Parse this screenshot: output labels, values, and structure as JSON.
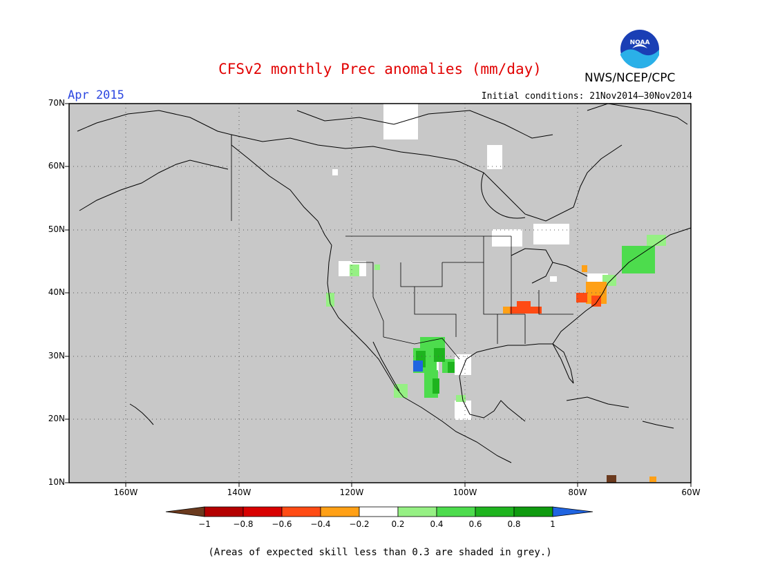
{
  "title": "CFSv2 monthly Prec anomalies (mm/day)",
  "valid_month": "Apr 2015",
  "initial_conditions": "Initial conditions: 21Nov2014–30Nov2014",
  "organization": "NWS/NCEP/CPC",
  "logo_text": "NOAA",
  "footnote": "(Areas of expected skill less than 0.3 are shaded in grey.)",
  "map": {
    "lat_labels": [
      "70N",
      "60N",
      "50N",
      "40N",
      "30N",
      "20N",
      "10N"
    ],
    "lon_labels": [
      "160W",
      "140W",
      "120W",
      "100W",
      "80W",
      "60W"
    ],
    "colors": {
      "grey": "#c8c8c8",
      "land_line": "#000000"
    }
  },
  "colorbar": {
    "labels": [
      "−1",
      "−0.8",
      "−0.6",
      "−0.4",
      "−0.2",
      "0.2",
      "0.4",
      "0.6",
      "0.8",
      "1"
    ],
    "colors": [
      "#6b3a1e",
      "#b40000",
      "#d80000",
      "#ff4b14",
      "#ffa016",
      "#ffffff",
      "#96f084",
      "#4ddc4d",
      "#1eb41e",
      "#0f9b0f",
      "#2064e0"
    ]
  }
}
